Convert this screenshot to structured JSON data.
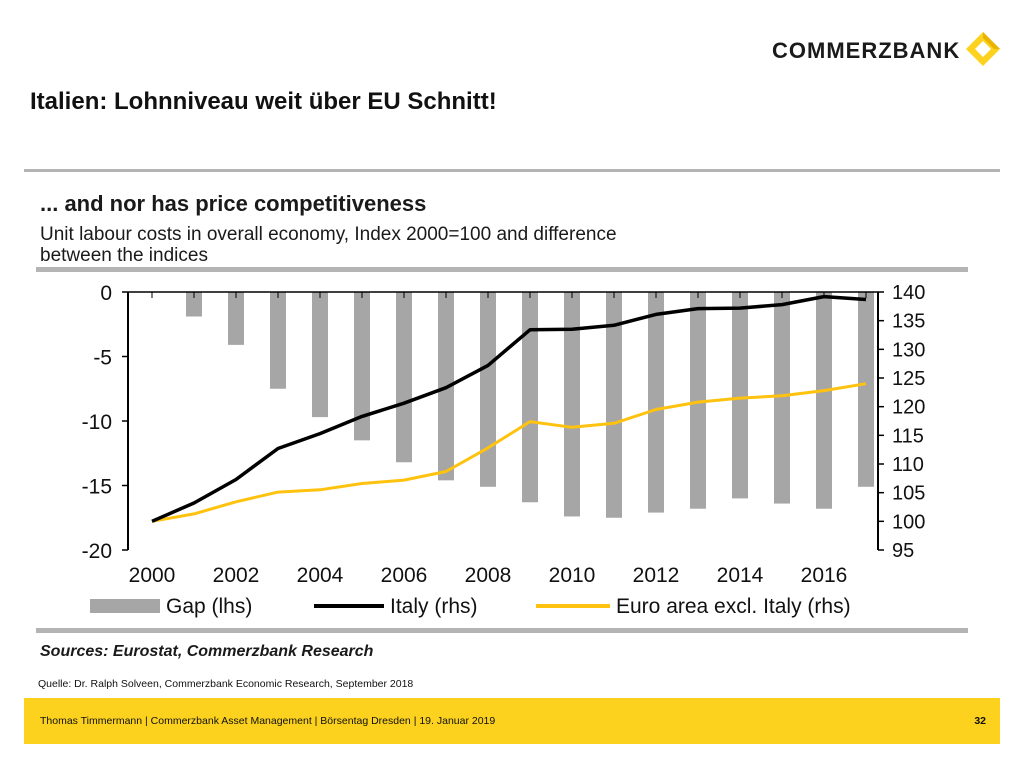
{
  "header": {
    "brand": "COMMERZBANK",
    "title": "Italien: Lohnniveau weit über EU Schnitt!"
  },
  "colors": {
    "brand_yellow": "#fcd21e",
    "gap_bar": "#a6a6a6",
    "italy_line": "#000000",
    "euro_line": "#ffc20e"
  },
  "chart_data": {
    "type": "bar",
    "title": "... and nor has price competitiveness",
    "subtitle": "Unit labour costs in overall economy, Index 2000=100 and difference between the indices",
    "x": [
      2000,
      2001,
      2002,
      2003,
      2004,
      2005,
      2006,
      2007,
      2008,
      2009,
      2010,
      2011,
      2012,
      2013,
      2014,
      2015,
      2016,
      2017
    ],
    "x_tick_labels": [
      "2000",
      "2002",
      "2004",
      "2006",
      "2008",
      "2010",
      "2012",
      "2014",
      "2016"
    ],
    "y_left_ticks": [
      "0",
      "-5",
      "-10",
      "-15",
      "-20"
    ],
    "y_right_ticks": [
      "140",
      "135",
      "130",
      "125",
      "120",
      "115",
      "110",
      "105",
      "100",
      "95"
    ],
    "ylim_left": [
      -20,
      0
    ],
    "ylim_right": [
      95,
      140
    ],
    "series": [
      {
        "name": "Gap (lhs)",
        "type": "bar",
        "axis": "left",
        "values": [
          0,
          -1.9,
          -4.1,
          -7.5,
          -9.7,
          -11.5,
          -13.2,
          -14.6,
          -15.1,
          -16.3,
          -17.4,
          -17.5,
          -17.1,
          -16.8,
          -16.0,
          -16.4,
          -16.8,
          -15.1
        ]
      },
      {
        "name": "Italy (rhs)",
        "type": "line",
        "axis": "right",
        "values": [
          100,
          103.2,
          107.3,
          112.7,
          115.3,
          118.3,
          120.6,
          123.3,
          127.2,
          133.4,
          133.5,
          134.2,
          136.1,
          137.1,
          137.2,
          137.8,
          139.2,
          138.7
        ]
      },
      {
        "name": "Euro area excl. Italy (rhs)",
        "type": "line",
        "axis": "right",
        "values": [
          100,
          101.3,
          103.4,
          105.1,
          105.5,
          106.6,
          107.2,
          108.7,
          112.8,
          117.4,
          116.4,
          117.1,
          119.5,
          120.8,
          121.5,
          121.9,
          122.8,
          124.0
        ]
      }
    ],
    "source": "Sources: Eurostat, Commerzbank Research",
    "grid": false,
    "legend_position": "bottom"
  },
  "note": "Quelle: Dr. Ralph Solveen, Commerzbank Economic Research, September 2018",
  "footer": {
    "text": "Thomas Timmermann | Commerzbank Asset Management | Börsentag Dresden | 19. Januar 2019",
    "page": "32"
  }
}
